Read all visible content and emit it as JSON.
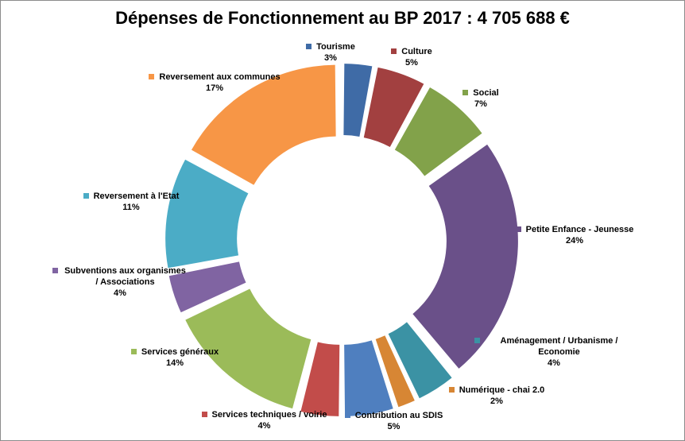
{
  "chart_data": {
    "type": "pie",
    "title": "Dépenses de Fonctionnement au BP 2017 : 4 705 688 €",
    "start_angle_deg": 0,
    "slices": [
      {
        "label": "Tourisme",
        "percent_label": "3%",
        "value": 3,
        "color": "#3f6ba6"
      },
      {
        "label": "Culture",
        "percent_label": "5%",
        "value": 5,
        "color": "#a24040"
      },
      {
        "label": "Social",
        "percent_label": "7%",
        "value": 7,
        "color": "#82a24a"
      },
      {
        "label": "Petite Enfance  - Jeunesse",
        "percent_label": "24%",
        "value": 24,
        "color": "#6a5089"
      },
      {
        "label": "Aménagement / Urbanisme / Economie",
        "percent_label": "4%",
        "value": 4,
        "color": "#3b92a4"
      },
      {
        "label": "Numérique - chai 2.0",
        "percent_label": "2%",
        "value": 2,
        "color": "#d78634"
      },
      {
        "label": "Contribution au SDIS",
        "percent_label": "5%",
        "value": 5,
        "color": "#4f7fbf"
      },
      {
        "label": "Services techniques / voirie",
        "percent_label": "4%",
        "value": 4,
        "color": "#c24c4a"
      },
      {
        "label": "Services généraux",
        "percent_label": "14%",
        "value": 14,
        "color": "#9bbb59"
      },
      {
        "label": "Subventions aux organismes / Associations",
        "percent_label": "4%",
        "value": 4,
        "color": "#8064a2"
      },
      {
        "label": "Reversement à l'Etat",
        "percent_label": "11%",
        "value": 11,
        "color": "#4bacc6"
      },
      {
        "label": "Reversement aux communes",
        "percent_label": "17%",
        "value": 17,
        "color": "#f79646"
      }
    ]
  }
}
